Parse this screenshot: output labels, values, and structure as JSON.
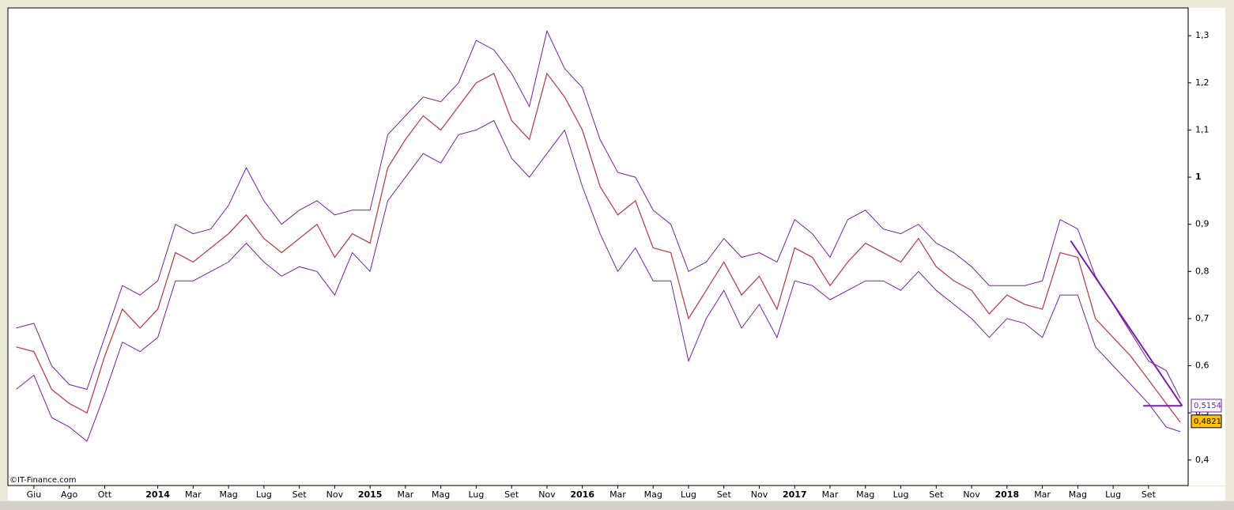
{
  "chart_data": {
    "type": "line",
    "watermark": "©IT-Finance.com",
    "x": [
      -1,
      0,
      1,
      2,
      3,
      4,
      5,
      6,
      7,
      8,
      9,
      10,
      11,
      12,
      13,
      14,
      15,
      16,
      17,
      18,
      19,
      20,
      21,
      22,
      23,
      24,
      25,
      26,
      27,
      28,
      29,
      30,
      31,
      32,
      33,
      34,
      35,
      36,
      37,
      38,
      39,
      40,
      41,
      42,
      43,
      44,
      45,
      46,
      47,
      48,
      49,
      50,
      51,
      52,
      53,
      54,
      55,
      56,
      57,
      58,
      59,
      60,
      61,
      62,
      63,
      64,
      64.8
    ],
    "series": [
      {
        "color": "#b8434f",
        "values": [
          0.64,
          0.63,
          0.55,
          0.52,
          0.5,
          0.62,
          0.72,
          0.68,
          0.72,
          0.84,
          0.82,
          0.85,
          0.88,
          0.92,
          0.87,
          0.84,
          0.87,
          0.9,
          0.83,
          0.88,
          0.86,
          1.02,
          1.08,
          1.13,
          1.1,
          1.15,
          1.2,
          1.22,
          1.12,
          1.08,
          1.22,
          1.17,
          1.1,
          0.98,
          0.92,
          0.95,
          0.85,
          0.84,
          0.7,
          0.76,
          0.82,
          0.75,
          0.79,
          0.72,
          0.85,
          0.83,
          0.77,
          0.82,
          0.86,
          0.84,
          0.82,
          0.87,
          0.81,
          0.78,
          0.76,
          0.71,
          0.75,
          0.73,
          0.72,
          0.84,
          0.83,
          0.7,
          0.66,
          0.62,
          0.57,
          0.52,
          0.48
        ]
      },
      {
        "color": "#7a1fa2",
        "values": [
          0.68,
          0.69,
          0.6,
          0.56,
          0.55,
          0.66,
          0.77,
          0.75,
          0.78,
          0.9,
          0.88,
          0.89,
          0.94,
          1.02,
          0.95,
          0.9,
          0.93,
          0.95,
          0.92,
          0.93,
          0.93,
          1.09,
          1.13,
          1.17,
          1.16,
          1.2,
          1.29,
          1.27,
          1.22,
          1.15,
          1.31,
          1.23,
          1.19,
          1.08,
          1.01,
          1.0,
          0.93,
          0.9,
          0.8,
          0.82,
          0.87,
          0.83,
          0.84,
          0.82,
          0.91,
          0.88,
          0.83,
          0.91,
          0.93,
          0.89,
          0.88,
          0.9,
          0.86,
          0.84,
          0.81,
          0.77,
          0.77,
          0.77,
          0.78,
          0.91,
          0.89,
          0.79,
          0.73,
          0.67,
          0.61,
          0.59,
          0.53
        ]
      },
      {
        "color": "#7a1fa2",
        "values": [
          0.55,
          0.58,
          0.49,
          0.47,
          0.44,
          0.54,
          0.65,
          0.63,
          0.66,
          0.78,
          0.78,
          0.8,
          0.82,
          0.86,
          0.82,
          0.79,
          0.81,
          0.8,
          0.75,
          0.84,
          0.8,
          0.95,
          1.0,
          1.05,
          1.03,
          1.09,
          1.1,
          1.12,
          1.04,
          1.0,
          1.05,
          1.1,
          0.98,
          0.88,
          0.8,
          0.85,
          0.78,
          0.78,
          0.61,
          0.7,
          0.76,
          0.68,
          0.73,
          0.66,
          0.78,
          0.77,
          0.74,
          0.76,
          0.78,
          0.78,
          0.76,
          0.8,
          0.76,
          0.73,
          0.7,
          0.66,
          0.7,
          0.69,
          0.66,
          0.75,
          0.75,
          0.64,
          0.6,
          0.56,
          0.52,
          0.47,
          0.46
        ]
      }
    ],
    "trend_lines": [
      {
        "color": "#7a1fa2",
        "x": [
          58.6,
          64.9
        ],
        "y": [
          0.865,
          0.515
        ]
      },
      {
        "color": "#7a1fa2",
        "x": [
          62.7,
          64.9
        ],
        "y": [
          0.515,
          0.515
        ]
      }
    ],
    "price_labels": [
      {
        "value": 0.5154,
        "label": "0,5154",
        "color": "#7a1fa2",
        "fill": "#ffffff"
      },
      {
        "value": 0.4821,
        "label": "0,4821",
        "color": "#000000",
        "fill": "#ffc20e"
      }
    ],
    "xlim": [
      -1.47,
      65.24
    ],
    "xticks": [
      {
        "value": 0,
        "label": "Giu"
      },
      {
        "value": 2,
        "label": "Ago"
      },
      {
        "value": 4,
        "label": "Ott"
      },
      {
        "value": 7,
        "label": "2014"
      },
      {
        "value": 9,
        "label": "Mar"
      },
      {
        "value": 11,
        "label": "Mag"
      },
      {
        "value": 13,
        "label": "Lug"
      },
      {
        "value": 15,
        "label": "Set"
      },
      {
        "value": 17,
        "label": "Nov"
      },
      {
        "value": 19,
        "label": "2015"
      },
      {
        "value": 21,
        "label": "Mar"
      },
      {
        "value": 23,
        "label": "Mag"
      },
      {
        "value": 25,
        "label": "Lug"
      },
      {
        "value": 27,
        "label": "Set"
      },
      {
        "value": 29,
        "label": "Nov"
      },
      {
        "value": 31,
        "label": "2016"
      },
      {
        "value": 33,
        "label": "Mar"
      },
      {
        "value": 35,
        "label": "Mag"
      },
      {
        "value": 37,
        "label": "Lug"
      },
      {
        "value": 39,
        "label": "Set"
      },
      {
        "value": 41,
        "label": "Nov"
      },
      {
        "value": 43,
        "label": "2017"
      },
      {
        "value": 45,
        "label": "Mar"
      },
      {
        "value": 47,
        "label": "Mag"
      },
      {
        "value": 49,
        "label": "Lug"
      },
      {
        "value": 51,
        "label": "Set"
      },
      {
        "value": 53,
        "label": "Nov"
      },
      {
        "value": 55,
        "label": "2018"
      },
      {
        "value": 57,
        "label": "Mar"
      },
      {
        "value": 59,
        "label": "Mag"
      },
      {
        "value": 61,
        "label": "Lug"
      },
      {
        "value": 63,
        "label": "Set"
      }
    ],
    "ylim": [
      0.346,
      1.359
    ],
    "yticks": [
      {
        "value": 0.4,
        "label": "0,4"
      },
      {
        "value": 0.5,
        "label": "0,5"
      },
      {
        "value": 0.6,
        "label": "0,6"
      },
      {
        "value": 0.7,
        "label": "0,7"
      },
      {
        "value": 0.8,
        "label": "0,8"
      },
      {
        "value": 0.9,
        "label": "0,9"
      },
      1,
      {
        "value": 1.1,
        "label": "1,1"
      },
      {
        "value": 1.2,
        "label": "1,2"
      },
      {
        "value": 1.3,
        "label": "1,3"
      }
    ]
  }
}
